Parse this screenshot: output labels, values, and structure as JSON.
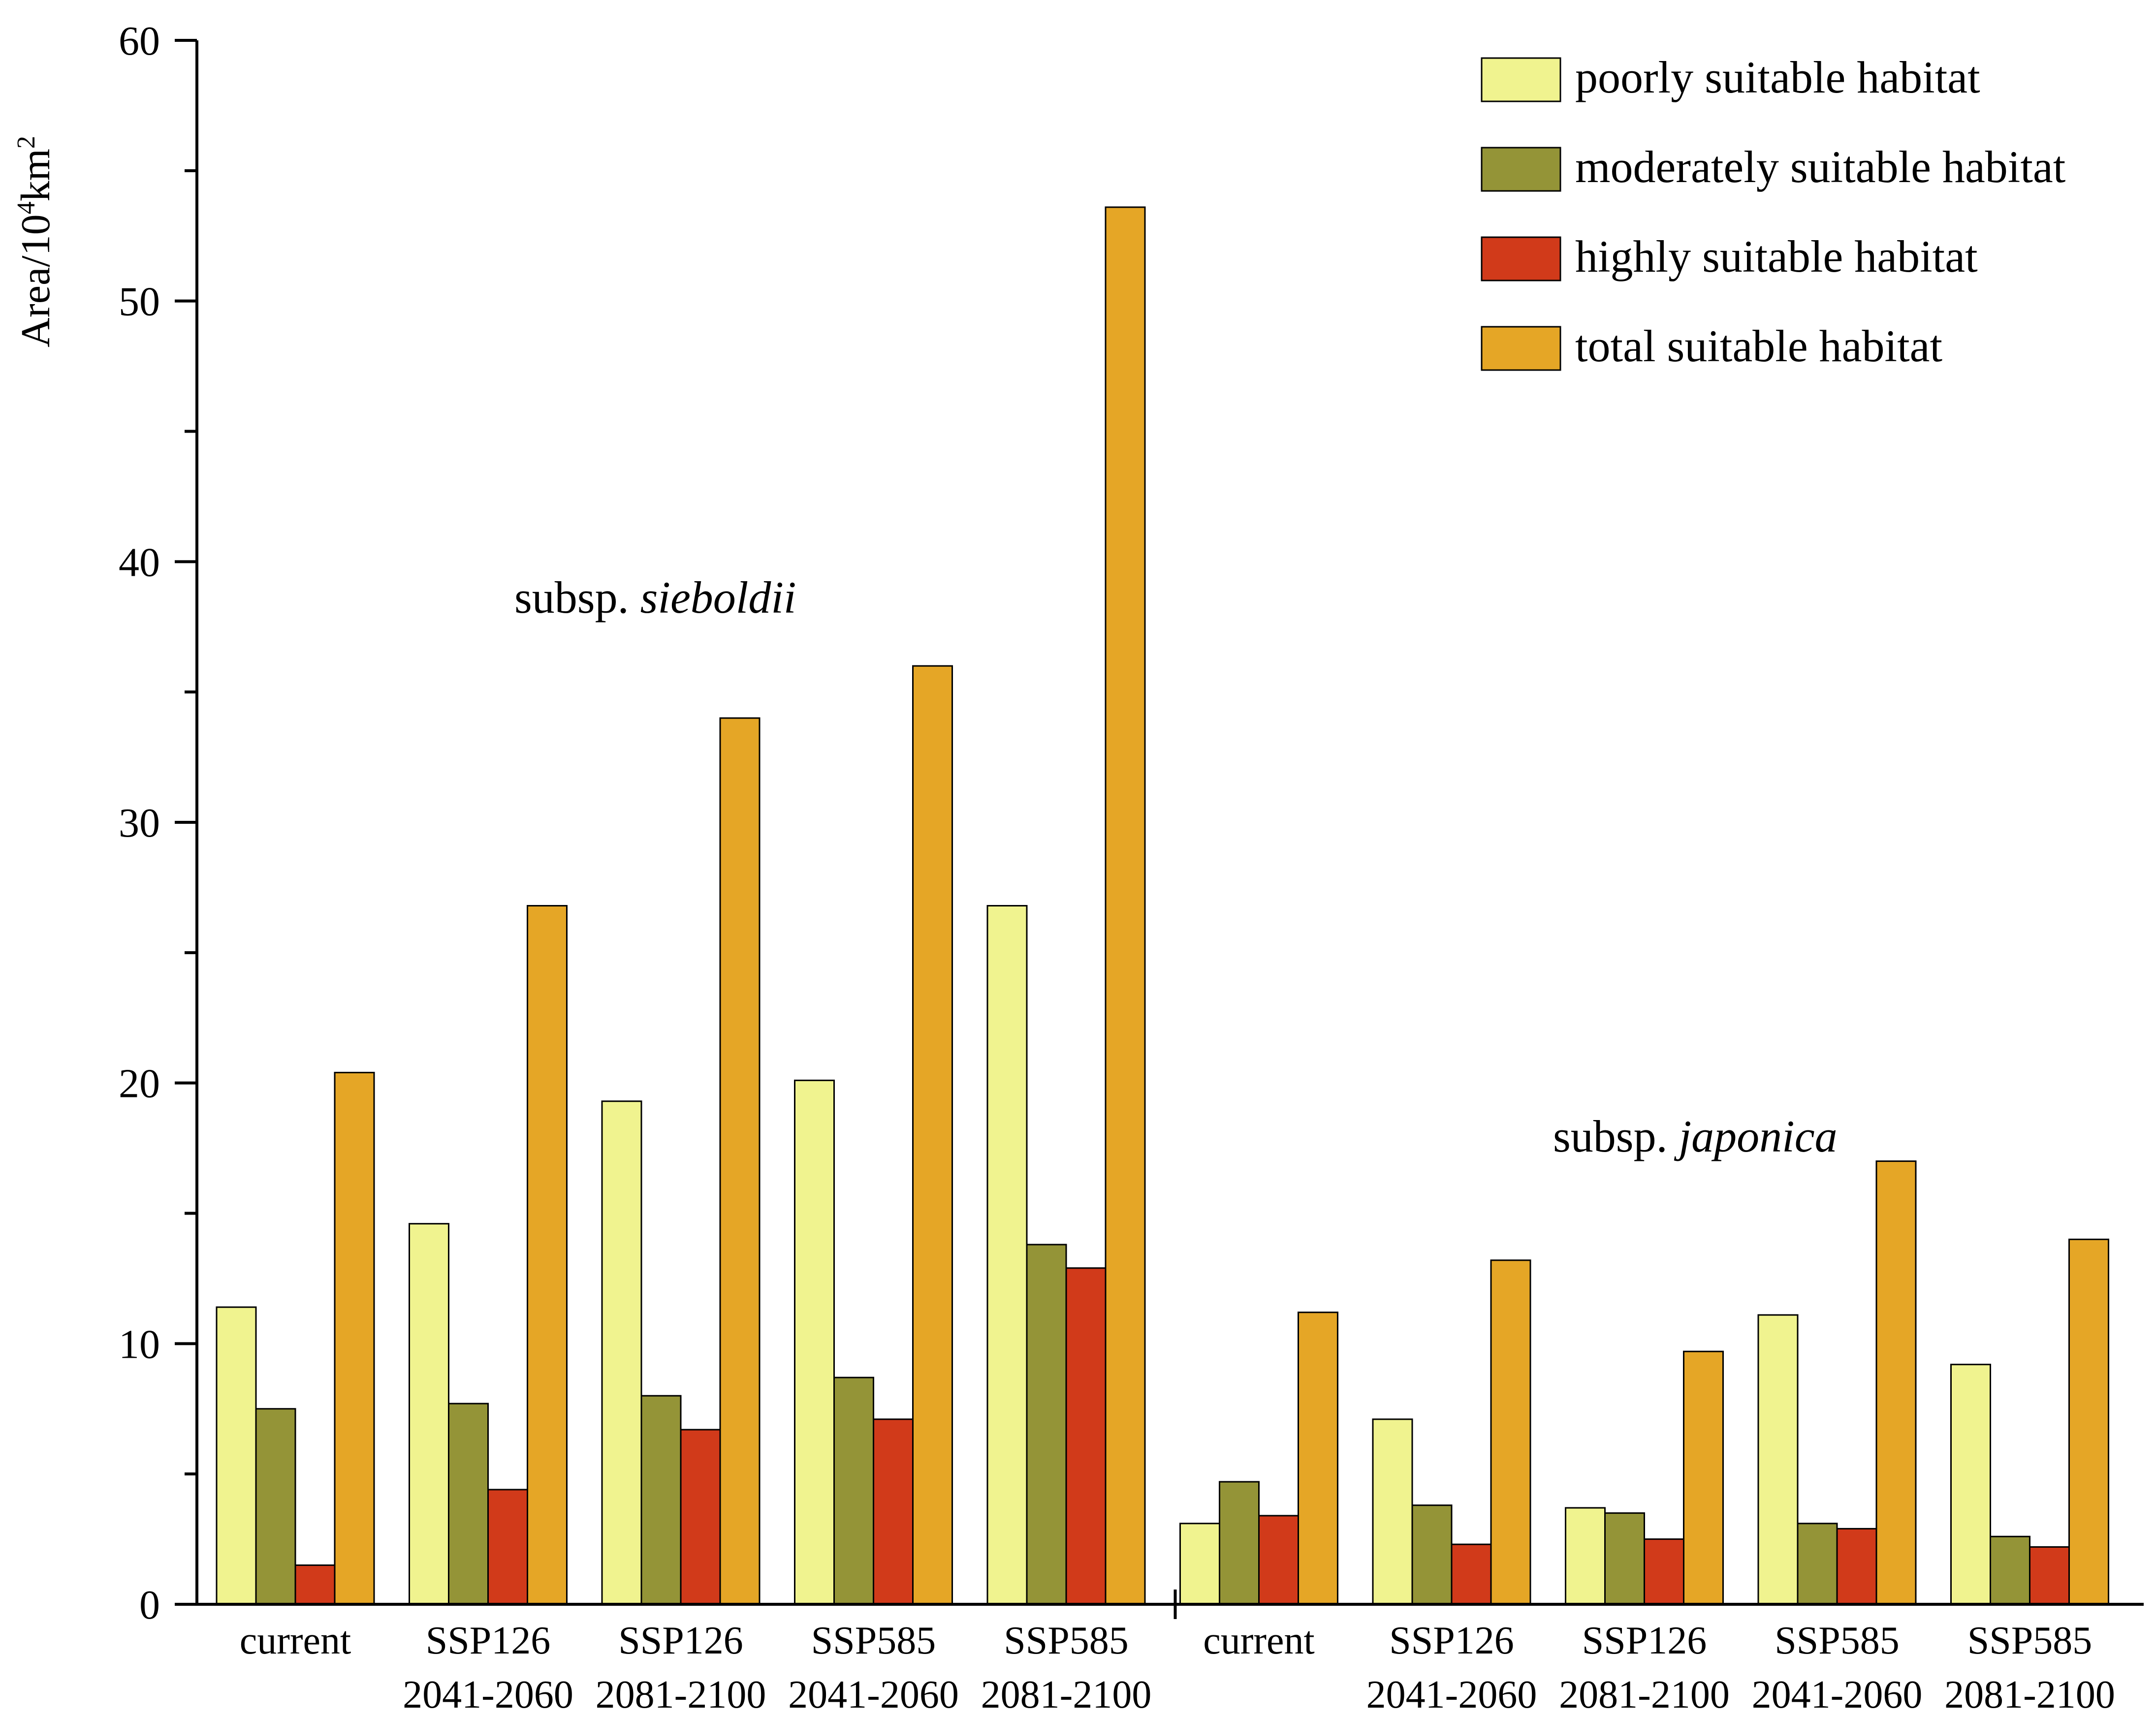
{
  "chart_data": {
    "type": "bar",
    "title": "",
    "xlabel": "",
    "ylabel": "Area/10",
    "ylabel_sup1": "4",
    "ylabel_unit": "km",
    "ylabel_sup2": "2",
    "ylim": [
      0,
      60
    ],
    "yticks": [
      0,
      10,
      20,
      30,
      40,
      50,
      60
    ],
    "grid": false,
    "legend_position": "top-right",
    "groups": [
      {
        "name_prefix": "subsp. ",
        "name_italic": "sieboldii",
        "categories": [
          {
            "line1": "current",
            "line2": ""
          },
          {
            "line1": "SSP126",
            "line2": "2041-2060"
          },
          {
            "line1": "SSP126",
            "line2": "2081-2100"
          },
          {
            "line1": "SSP585",
            "line2": "2041-2060"
          },
          {
            "line1": "SSP585",
            "line2": "2081-2100"
          }
        ]
      },
      {
        "name_prefix": "subsp. ",
        "name_italic": "japonica",
        "categories": [
          {
            "line1": "current",
            "line2": ""
          },
          {
            "line1": "SSP126",
            "line2": "2041-2060"
          },
          {
            "line1": "SSP126",
            "line2": "2081-2100"
          },
          {
            "line1": "SSP585",
            "line2": "2041-2060"
          },
          {
            "line1": "SSP585",
            "line2": "2081-2100"
          }
        ]
      }
    ],
    "series": [
      {
        "name": "poorly suitable habitat",
        "color": "#f0f38f",
        "values": [
          11.4,
          14.6,
          19.3,
          20.1,
          26.8,
          3.1,
          7.1,
          3.7,
          11.1,
          9.2
        ]
      },
      {
        "name": "moderately suitable habitat",
        "color": "#949437",
        "values": [
          7.5,
          7.7,
          8.0,
          8.7,
          13.8,
          4.7,
          3.8,
          3.5,
          3.1,
          2.6
        ]
      },
      {
        "name": "highly suitable habitat",
        "color": "#d13a1a",
        "values": [
          1.5,
          4.4,
          6.7,
          7.1,
          12.9,
          3.4,
          2.3,
          2.5,
          2.9,
          2.2
        ]
      },
      {
        "name": "total suitable habitat",
        "color": "#e5a626",
        "values": [
          20.4,
          26.8,
          34.0,
          36.0,
          53.6,
          11.2,
          13.2,
          9.7,
          17.0,
          14.0
        ]
      }
    ]
  }
}
